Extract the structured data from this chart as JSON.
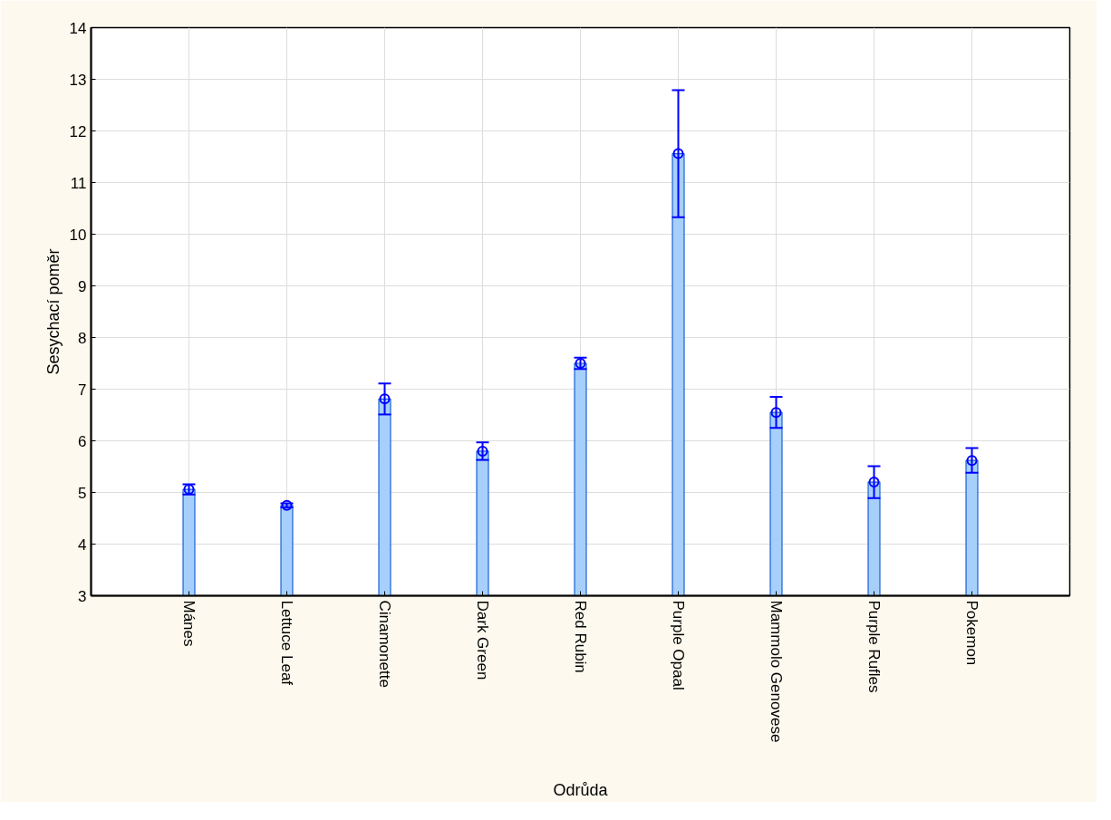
{
  "chart_data": {
    "type": "bar",
    "xlabel": "Odrůda",
    "ylabel": "Sesychací poměr",
    "categories": [
      "Mánes",
      "Lettuce Leaf",
      "Cinamonette",
      "Dark Green",
      "Red Rubin",
      "Purple Opaal",
      "Mammolo Genovese",
      "Purple Rufles",
      "Pokemon"
    ],
    "series": [
      {
        "color": "#a6d0fb",
        "values": [
          5.06,
          4.75,
          6.81,
          5.8,
          7.5,
          11.56,
          6.55,
          5.2,
          5.62
        ]
      },
      {
        "type": "scatter",
        "color": "#0000ff",
        "x": [
          "Mánes",
          "Lettuce Leaf",
          "Cinamonette",
          "Dark Green",
          "Red Rubin",
          "Purple Opaal",
          "Mammolo Genovese",
          "Purple Rufles",
          "Pokemon"
        ],
        "values": [
          5.06,
          4.75,
          6.81,
          5.8,
          7.5,
          11.56,
          6.55,
          5.2,
          5.62
        ],
        "errors": [
          0.1,
          0.04,
          0.3,
          0.17,
          0.11,
          1.23,
          0.3,
          0.31,
          0.24
        ]
      }
    ],
    "marker": "circle",
    "ylim": [
      3,
      14
    ],
    "yticks": [
      3,
      4,
      5,
      6,
      7,
      8,
      9,
      10,
      11,
      12,
      13,
      14
    ],
    "grid": true
  }
}
